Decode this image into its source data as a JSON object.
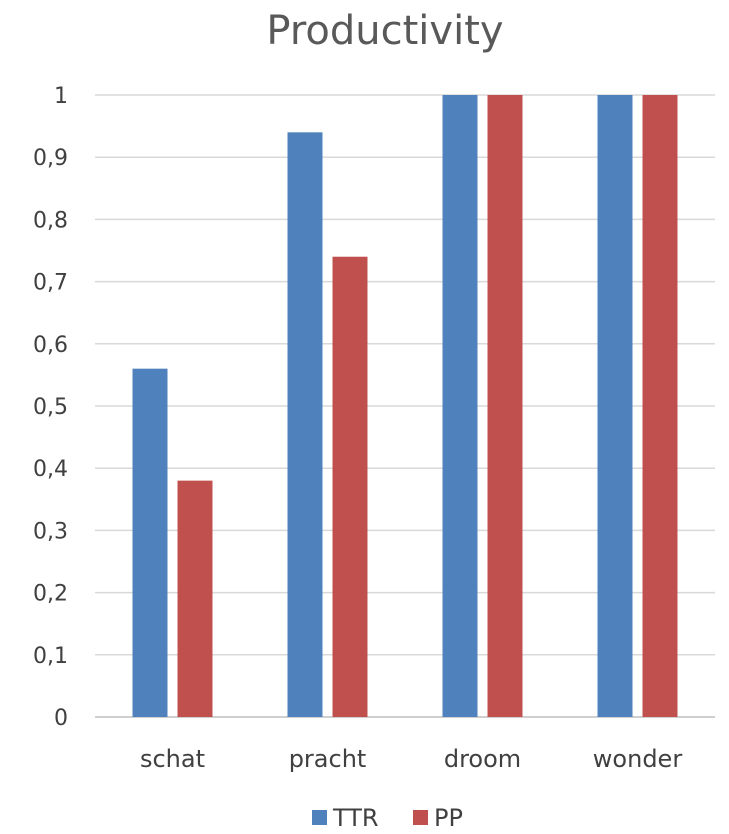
{
  "chart_data": {
    "type": "bar",
    "title": "Productivity",
    "categories": [
      "schat",
      "pracht",
      "droom",
      "wonder"
    ],
    "series": [
      {
        "name": "TTR",
        "color": "#4F81BD",
        "values": [
          0.56,
          0.94,
          1,
          1
        ]
      },
      {
        "name": "PP",
        "color": "#C0504D",
        "values": [
          0.38,
          0.74,
          1,
          1
        ]
      }
    ],
    "ylim": [
      0,
      1
    ],
    "yticks": [
      "0",
      "0,1",
      "0,2",
      "0,3",
      "0,4",
      "0,5",
      "0,6",
      "0,7",
      "0,8",
      "0,9",
      "1"
    ],
    "xlabel": "",
    "ylabel": "",
    "grid": true,
    "legend": "bottom"
  }
}
